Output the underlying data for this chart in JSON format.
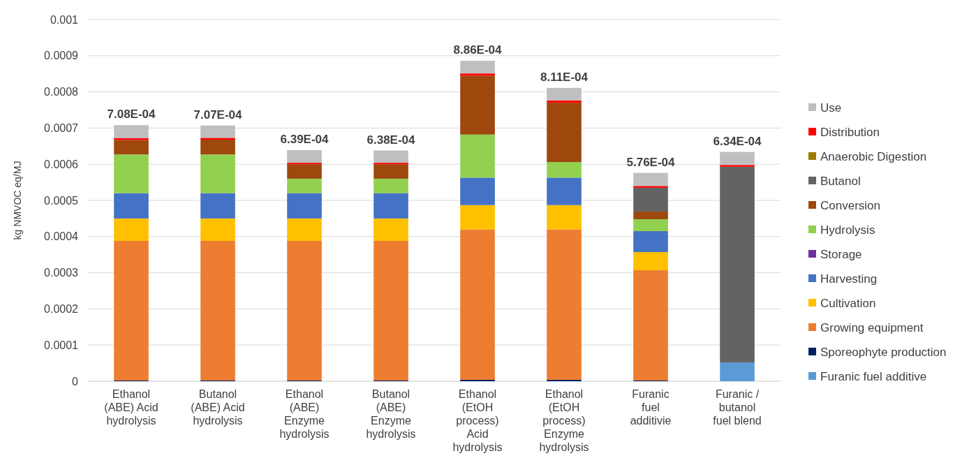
{
  "chart_data": {
    "type": "bar",
    "stacked": true,
    "ylabel": "kg NMVOC eq/MJ",
    "categories": [
      "Ethanol (ABE) Acid hydrolysis",
      "Butanol (ABE) Acid hydrolysis",
      "Ethanol (ABE) Enzyme hydrolysis",
      "Butanol (ABE) Enzyme hydrolysis",
      "Ethanol (EtOH process) Acid hydrolysis",
      "Ethanol (EtOH process) Enzyme hydrolysis",
      "Furanic fuel additivie",
      "Furanic / butanol fuel blend"
    ],
    "series": [
      {
        "name": "Furanic fuel additive",
        "color": "#5b9bd5",
        "values": [
          0,
          0,
          0,
          0,
          0,
          0,
          0,
          5.2e-05
        ]
      },
      {
        "name": "Sporeophyte production",
        "color": "#002060",
        "values": [
          2e-06,
          2e-06,
          2e-06,
          2e-06,
          4e-06,
          4e-06,
          2e-06,
          0
        ]
      },
      {
        "name": "Growing equipment",
        "color": "#ed7d31",
        "values": [
          0.000386,
          0.000386,
          0.000386,
          0.000386,
          0.000416,
          0.000416,
          0.000305,
          0
        ]
      },
      {
        "name": "Cultivation",
        "color": "#ffc000",
        "values": [
          6.2e-05,
          6.2e-05,
          6.2e-05,
          6.2e-05,
          6.7e-05,
          6.7e-05,
          5e-05,
          0
        ]
      },
      {
        "name": "Harvesting",
        "color": "#4472c4",
        "values": [
          7e-05,
          7e-05,
          7e-05,
          7e-05,
          7.6e-05,
          7.6e-05,
          5.8e-05,
          0
        ]
      },
      {
        "name": "Storage",
        "color": "#7030a0",
        "values": [
          0,
          0,
          0,
          0,
          0,
          0,
          0,
          0
        ]
      },
      {
        "name": "Hydrolysis",
        "color": "#92d050",
        "values": [
          0.000107,
          0.000107,
          4e-05,
          4e-05,
          0.000119,
          4.3e-05,
          3.3e-05,
          0
        ]
      },
      {
        "name": "Conversion",
        "color": "#9e480e",
        "values": [
          4e-05,
          4.1e-05,
          4e-05,
          4e-05,
          0.000163,
          0.000164,
          2.1e-05,
          0
        ]
      },
      {
        "name": "Butanol",
        "color": "#636363",
        "values": [
          0,
          0,
          0,
          0,
          0,
          0,
          6.6e-05,
          0.000541
        ]
      },
      {
        "name": "Anaerobic Digestion",
        "color": "#9c7a00",
        "values": [
          0,
          0,
          0,
          0,
          0,
          0,
          0,
          0
        ]
      },
      {
        "name": "Distribution",
        "color": "#ff0000",
        "values": [
          5e-06,
          5e-06,
          4e-06,
          4e-06,
          6e-06,
          6e-06,
          5e-06,
          5e-06
        ]
      },
      {
        "name": "Use",
        "color": "#bfbfbf",
        "values": [
          3.6e-05,
          3.4e-05,
          3.5e-05,
          3.4e-05,
          3.5e-05,
          3.5e-05,
          3.6e-05,
          3.6e-05
        ]
      }
    ],
    "totals": [
      "7.08E-04",
      "7.07E-04",
      "6.39E-04",
      "6.38E-04",
      "8.86E-04",
      "8.11E-04",
      "5.76E-04",
      "6.34E-04"
    ],
    "ylim": [
      0,
      0.001
    ],
    "yticks": [
      0,
      0.0001,
      0.0002,
      0.0003,
      0.0004,
      0.0005,
      0.0006,
      0.0007,
      0.0008,
      0.0009,
      0.001
    ],
    "grid": "y",
    "legend": "right"
  }
}
